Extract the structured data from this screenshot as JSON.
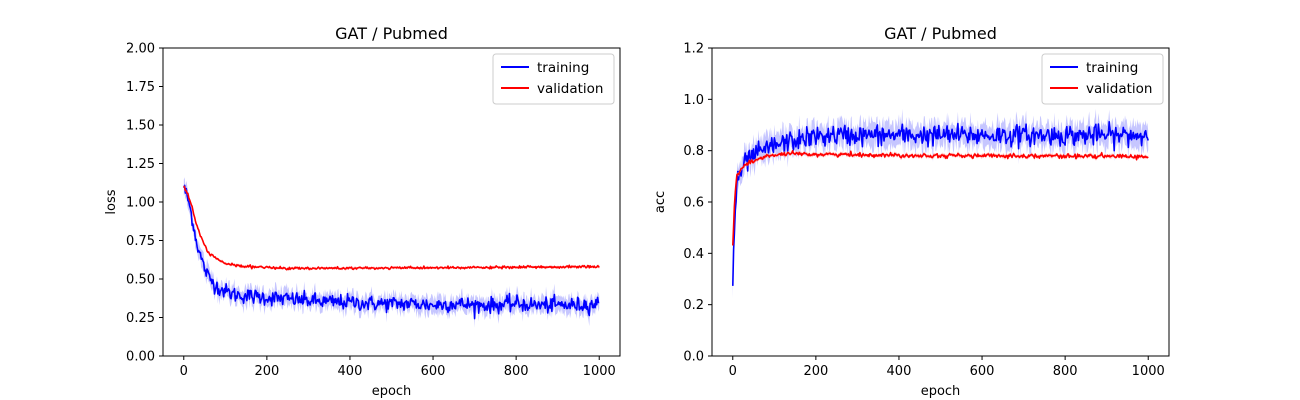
{
  "chart_data": [
    {
      "type": "line",
      "title": "GAT / Pubmed",
      "xlabel": "epoch",
      "ylabel": "loss",
      "xlim": [
        -50,
        1050
      ],
      "ylim": [
        0,
        2
      ],
      "xticks": [
        0,
        200,
        400,
        600,
        800,
        1000
      ],
      "xtick_labels": [
        "0",
        "200",
        "400",
        "600",
        "800",
        "1000"
      ],
      "yticks": [
        0,
        0.25,
        0.5,
        0.75,
        1.0,
        1.25,
        1.5,
        1.75,
        2.0
      ],
      "ytick_labels": [
        "0.00",
        "0.25",
        "0.50",
        "0.75",
        "1.00",
        "1.25",
        "1.50",
        "1.75",
        "2.00"
      ],
      "legend": "top-right",
      "grid": false,
      "series": [
        {
          "name": "training",
          "color": "#0000ff",
          "band_color": "#b3b3ff",
          "x": [
            0,
            10,
            20,
            30,
            40,
            50,
            60,
            80,
            100,
            120,
            150,
            200,
            250,
            300,
            350,
            400,
            450,
            500,
            550,
            600,
            650,
            700,
            750,
            800,
            850,
            900,
            950,
            1000
          ],
          "y": [
            1.1,
            1.02,
            0.9,
            0.75,
            0.65,
            0.57,
            0.51,
            0.45,
            0.42,
            0.4,
            0.39,
            0.38,
            0.37,
            0.36,
            0.35,
            0.35,
            0.34,
            0.34,
            0.34,
            0.33,
            0.34,
            0.33,
            0.33,
            0.34,
            0.33,
            0.33,
            0.33,
            0.34
          ],
          "band_halfwidth": 0.05,
          "noise": 0.025
        },
        {
          "name": "validation",
          "color": "#ff0000",
          "band_color": "#ffb3b3",
          "x": [
            0,
            10,
            20,
            30,
            40,
            50,
            60,
            80,
            100,
            120,
            150,
            200,
            250,
            300,
            350,
            400,
            450,
            500,
            550,
            600,
            650,
            700,
            750,
            800,
            850,
            900,
            950,
            1000
          ],
          "y": [
            1.1,
            1.05,
            0.96,
            0.86,
            0.78,
            0.72,
            0.67,
            0.63,
            0.6,
            0.59,
            0.58,
            0.575,
            0.57,
            0.57,
            0.57,
            0.57,
            0.57,
            0.572,
            0.572,
            0.573,
            0.573,
            0.574,
            0.575,
            0.576,
            0.577,
            0.578,
            0.579,
            0.58
          ],
          "band_halfwidth": 0.008,
          "noise": 0.004
        }
      ]
    },
    {
      "type": "line",
      "title": "GAT / Pubmed",
      "xlabel": "epoch",
      "ylabel": "acc",
      "xlim": [
        -50,
        1050
      ],
      "ylim": [
        0,
        1.2
      ],
      "xticks": [
        0,
        200,
        400,
        600,
        800,
        1000
      ],
      "xtick_labels": [
        "0",
        "200",
        "400",
        "600",
        "800",
        "1000"
      ],
      "yticks": [
        0,
        0.2,
        0.4,
        0.6,
        0.8,
        1.0,
        1.2
      ],
      "ytick_labels": [
        "0.0",
        "0.2",
        "0.4",
        "0.6",
        "0.8",
        "1.0",
        "1.2"
      ],
      "legend": "top-right",
      "grid": false,
      "series": [
        {
          "name": "training",
          "color": "#0000ff",
          "band_color": "#b3b3ff",
          "x": [
            0,
            5,
            10,
            20,
            30,
            50,
            75,
            100,
            150,
            200,
            250,
            300,
            400,
            500,
            600,
            700,
            800,
            900,
            1000
          ],
          "y": [
            0.29,
            0.55,
            0.66,
            0.72,
            0.75,
            0.78,
            0.8,
            0.82,
            0.84,
            0.855,
            0.86,
            0.86,
            0.86,
            0.86,
            0.86,
            0.86,
            0.86,
            0.86,
            0.86
          ],
          "band_halfwidth": 0.045,
          "noise": 0.02
        },
        {
          "name": "validation",
          "color": "#ff0000",
          "band_color": "#ffb3b3",
          "x": [
            0,
            5,
            10,
            20,
            30,
            50,
            75,
            100,
            150,
            200,
            250,
            300,
            400,
            500,
            600,
            700,
            800,
            900,
            1000
          ],
          "y": [
            0.43,
            0.62,
            0.7,
            0.73,
            0.745,
            0.76,
            0.775,
            0.783,
            0.787,
            0.786,
            0.785,
            0.784,
            0.782,
            0.781,
            0.78,
            0.78,
            0.779,
            0.778,
            0.777
          ],
          "band_halfwidth": 0.007,
          "noise": 0.004
        }
      ]
    }
  ]
}
